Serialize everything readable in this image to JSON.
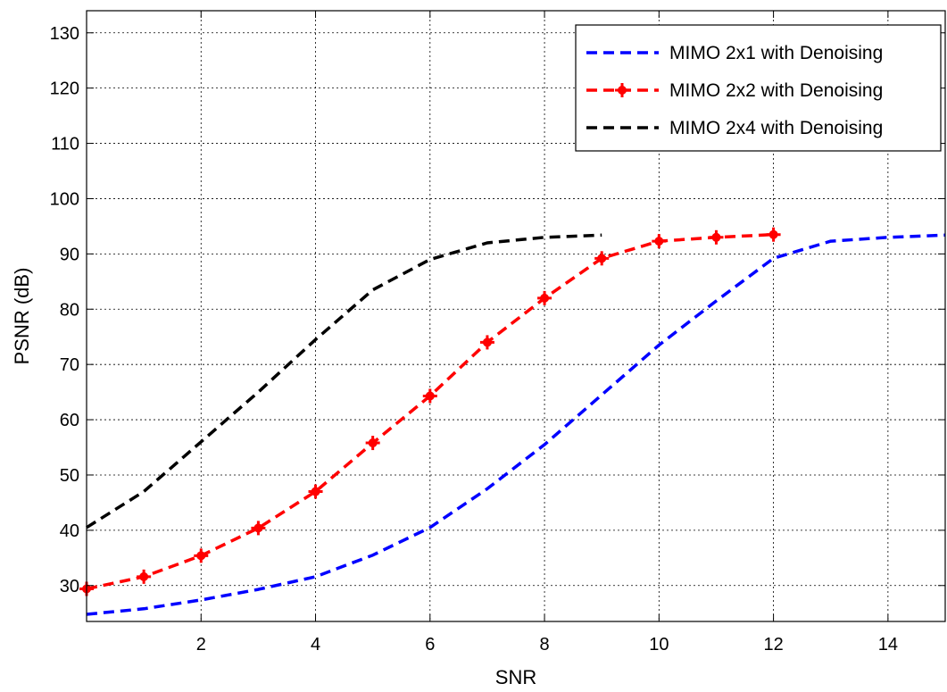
{
  "chart_data": {
    "type": "line",
    "xlabel": "SNR",
    "ylabel": "PSNR (dB)",
    "xlim": [
      0,
      15
    ],
    "ylim": [
      23.5,
      134
    ],
    "x_ticks": [
      2,
      4,
      6,
      8,
      10,
      12,
      14
    ],
    "y_ticks": [
      30,
      40,
      50,
      60,
      70,
      80,
      90,
      100,
      110,
      120,
      130
    ],
    "grid": true,
    "legend_position": "top-right",
    "series": [
      {
        "name": "MIMO 2x1 with Denoising",
        "color": "#0000ff",
        "style": "dashed",
        "markers": false,
        "x": [
          0,
          1,
          2,
          3,
          4,
          5,
          6,
          7,
          8,
          9,
          10,
          11,
          12,
          13,
          14,
          15
        ],
        "y": [
          24.8,
          25.8,
          27.4,
          29.3,
          31.6,
          35.5,
          40.5,
          47.5,
          55.5,
          64.5,
          73.5,
          81.5,
          89.2,
          92.3,
          93.0,
          93.4
        ]
      },
      {
        "name": "MIMO 2x2 with Denoising",
        "color": "#ff0000",
        "style": "dashed",
        "markers": true,
        "x": [
          0,
          1,
          2,
          3,
          4,
          5,
          6,
          7,
          8,
          9,
          10,
          11,
          12
        ],
        "y": [
          29.4,
          31.6,
          35.4,
          40.4,
          47.0,
          55.8,
          64.3,
          74.0,
          82.0,
          89.2,
          92.3,
          93.0,
          93.5
        ]
      },
      {
        "name": "MIMO 2x4 with Denoising",
        "color": "#000000",
        "style": "dashed",
        "markers": false,
        "x": [
          0,
          1,
          2,
          3,
          4,
          5,
          6,
          7,
          8,
          9
        ],
        "y": [
          40.5,
          47.0,
          56.0,
          65.0,
          74.5,
          83.5,
          89.0,
          92.0,
          93.0,
          93.4
        ]
      }
    ]
  }
}
